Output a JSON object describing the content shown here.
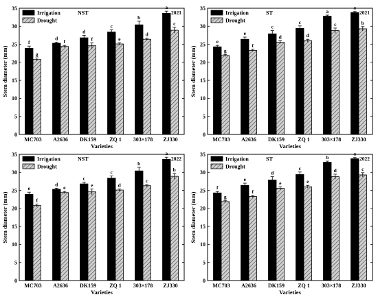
{
  "chart_data": [
    {
      "type": "bar",
      "year": "2021",
      "legend_note": "NST",
      "legend_position": "top-left",
      "xlabel": "Varieties",
      "ylabel": "Stem diameter (mm)",
      "ylim": [
        0,
        35
      ],
      "yticks": [
        0,
        5,
        10,
        15,
        20,
        25,
        30,
        35
      ],
      "grid": false,
      "categories": [
        "MC703",
        "A2636",
        "DK159",
        "ZQ 1",
        "303×178",
        "ZJ330"
      ],
      "series": [
        {
          "name": "Irrigation",
          "values": [
            23.9,
            25.3,
            26.8,
            28.4,
            30.4,
            33.6
          ],
          "errors": [
            0.6,
            0.3,
            0.7,
            0.6,
            1.0,
            0.6
          ],
          "letters": [
            "f",
            "d",
            "d",
            "c",
            "b",
            "a"
          ]
        },
        {
          "name": "Drought",
          "values": [
            20.8,
            24.4,
            24.6,
            25.1,
            26.4,
            28.9
          ],
          "errors": [
            0.4,
            0.3,
            0.8,
            0.3,
            0.3,
            0.8
          ],
          "letters": [
            "g",
            "f",
            "f",
            "e",
            "d",
            "c"
          ]
        }
      ]
    },
    {
      "type": "bar",
      "year": "2021",
      "legend_note": "ST",
      "legend_position": "top-left",
      "xlabel": "Varieties",
      "ylabel": "Stem diameter (mm)",
      "ylim": [
        0,
        35
      ],
      "yticks": [
        0,
        5,
        10,
        15,
        20,
        25,
        30,
        35
      ],
      "grid": false,
      "categories": [
        "MC703",
        "A2636",
        "DK159",
        "ZQ 1",
        "303×178",
        "ZJ330"
      ],
      "series": [
        {
          "name": "Irrigation",
          "values": [
            24.3,
            26.4,
            27.9,
            29.4,
            32.8,
            33.8
          ],
          "errors": [
            0.4,
            0.6,
            0.9,
            0.7,
            0.3,
            0.3
          ],
          "letters": [
            "e",
            "e",
            "c",
            "c",
            "a",
            "a"
          ]
        },
        {
          "name": "Drought",
          "values": [
            21.9,
            23.3,
            25.6,
            26.0,
            28.8,
            29.3
          ],
          "errors": [
            0.3,
            0.3,
            0.4,
            0.4,
            0.7,
            0.6
          ],
          "letters": [
            "g",
            "f",
            "d",
            "d",
            "c",
            "b"
          ]
        }
      ]
    },
    {
      "type": "bar",
      "year": "2022",
      "legend_note": "NST",
      "legend_position": "top-left",
      "xlabel": "Varieties",
      "ylabel": "Stem diameter (mm)",
      "ylim": [
        0,
        35
      ],
      "yticks": [
        0,
        5,
        10,
        15,
        20,
        25,
        30,
        35
      ],
      "grid": false,
      "categories": [
        "MC703",
        "A2636",
        "DK159",
        "ZQ 1",
        "303×178",
        "ZJ330"
      ],
      "series": [
        {
          "name": "Irrigation",
          "values": [
            23.9,
            25.3,
            26.8,
            28.4,
            30.4,
            33.6
          ],
          "errors": [
            0.6,
            0.3,
            0.5,
            0.6,
            1.0,
            0.6
          ],
          "letters": [
            "e",
            "d",
            "c",
            "c",
            "b",
            "a"
          ]
        },
        {
          "name": "Drought",
          "values": [
            20.8,
            24.4,
            24.6,
            25.1,
            26.3,
            28.9
          ],
          "errors": [
            0.4,
            0.3,
            0.8,
            0.3,
            0.3,
            0.8
          ],
          "letters": [
            "f",
            "e",
            "e",
            "d",
            "c",
            "b"
          ]
        }
      ]
    },
    {
      "type": "bar",
      "year": "2022",
      "legend_note": "ST",
      "legend_position": "top-left",
      "xlabel": "Varieties",
      "ylabel": "Stem diameter (mm)",
      "ylim": [
        0,
        35
      ],
      "yticks": [
        0,
        5,
        10,
        15,
        20,
        25,
        30,
        35
      ],
      "grid": false,
      "categories": [
        "MC703",
        "A2636",
        "DK159",
        "ZQ 1",
        "303×178",
        "ZJ330"
      ],
      "series": [
        {
          "name": "Irrigation",
          "values": [
            24.3,
            26.4,
            27.9,
            29.4,
            32.8,
            33.8
          ],
          "errors": [
            0.4,
            0.6,
            0.9,
            0.7,
            0.3,
            0.3
          ],
          "letters": [
            "f",
            "e",
            "d",
            "c",
            "b",
            "a"
          ]
        },
        {
          "name": "Drought",
          "values": [
            21.9,
            23.3,
            25.6,
            26.0,
            28.8,
            29.3
          ],
          "errors": [
            0.3,
            0.3,
            0.4,
            0.4,
            0.7,
            0.6
          ],
          "letters": [
            "g",
            "f",
            "e",
            "e",
            "d",
            "c"
          ]
        }
      ]
    }
  ],
  "colors": {
    "irrigation": "#000000",
    "drought_fill": "#cfcfcf",
    "drought_hatch": "#333333",
    "axis": "#000000"
  }
}
